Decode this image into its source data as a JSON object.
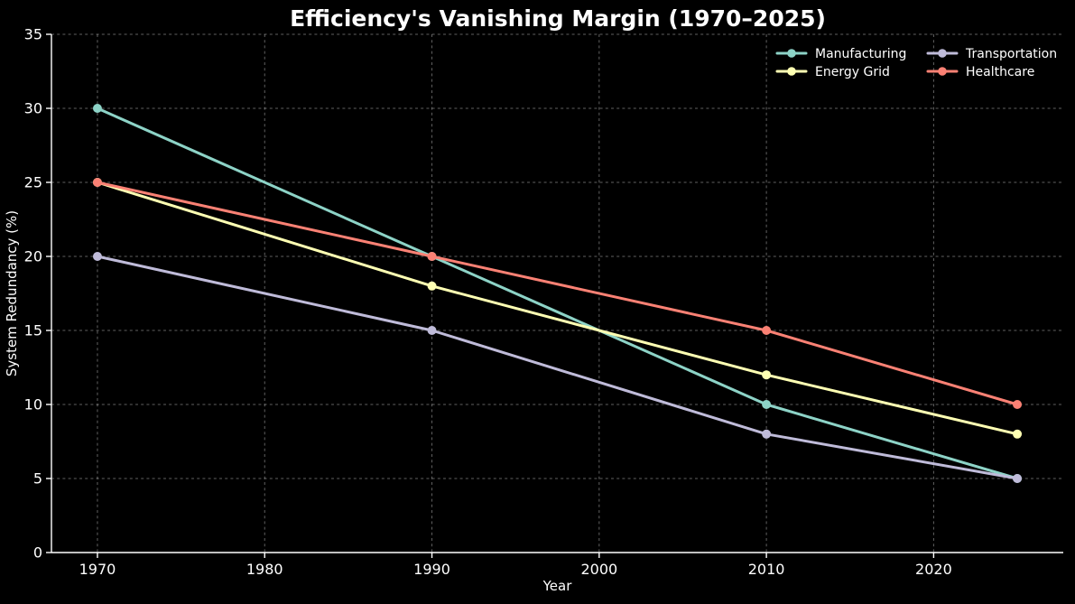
{
  "chart_data": {
    "type": "line",
    "title": "Efficiency's Vanishing Margin (1970–2025)",
    "xlabel": "Year",
    "ylabel": "System Redundancy (%)",
    "x": [
      1970,
      1990,
      2010,
      2025
    ],
    "series": [
      {
        "name": "Manufacturing",
        "color": "#8dd3c7",
        "values": [
          30,
          20,
          10,
          5
        ]
      },
      {
        "name": "Energy Grid",
        "color": "#feffb3",
        "values": [
          25,
          18,
          12,
          8
        ]
      },
      {
        "name": "Transportation",
        "color": "#bfbbd9",
        "values": [
          20,
          15,
          8,
          5
        ]
      },
      {
        "name": "Healthcare",
        "color": "#fa8174",
        "values": [
          25,
          20,
          15,
          10
        ]
      }
    ],
    "xlim": [
      1967.25,
      2027.75
    ],
    "ylim": [
      0,
      35
    ],
    "xticks": [
      1970,
      1980,
      1990,
      2000,
      2010,
      2020
    ],
    "yticks": [
      0,
      5,
      10,
      15,
      20,
      25,
      30,
      35
    ],
    "grid": true,
    "grid_style": "dashed",
    "legend_position": "upper right",
    "legend_columns": 2,
    "legend_order": [
      "Manufacturing",
      "Energy Grid",
      "Transportation",
      "Healthcare"
    ],
    "background_color": "#000000",
    "text_color": "#ffffff"
  }
}
